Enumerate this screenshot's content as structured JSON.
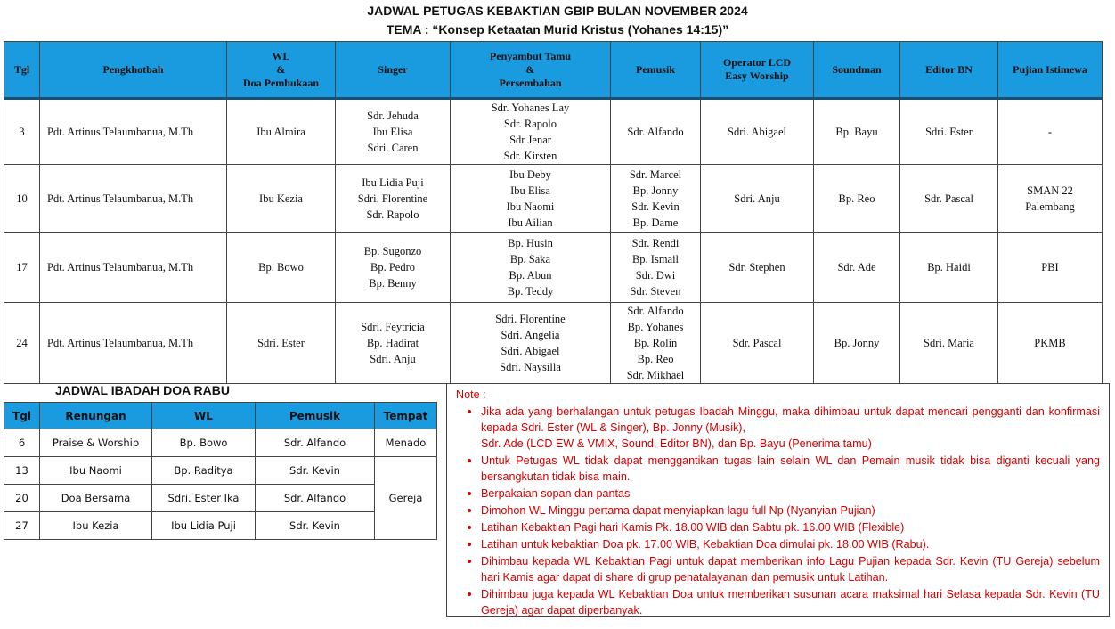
{
  "header": {
    "title": "JADWAL PETUGAS KEBAKTIAN GBIP BULAN NOVEMBER 2024",
    "theme": "TEMA : “Konsep Ketaatan Murid Kristus (Yohanes 14:15)”"
  },
  "colors": {
    "header_bg": "#1a9be0",
    "note_text": "#d40000"
  },
  "main_table": {
    "columns": [
      "Tgl",
      "Pengkhotbah",
      "WL\n&\nDoa Pembukaan",
      "Singer",
      "Penyambut Tamu\n&\nPersembahan",
      "Pemusik",
      "Operator LCD\nEasy Worship",
      "Soundman",
      "Editor BN",
      "Pujian Istimewa"
    ],
    "rows": [
      [
        "3",
        "Pdt. Artinus Telaumbanua, M.Th",
        "Ibu Almira",
        "Sdr. Jehuda\nIbu Elisa\nSdri. Caren",
        "Sdr. Yohanes Lay\nSdr. Rapolo\nSdr Jenar\nSdr. Kirsten",
        "Sdr. Alfando",
        "Sdri. Abigael",
        "Bp. Bayu",
        "Sdri. Ester",
        "-"
      ],
      [
        "10",
        "Pdt. Artinus Telaumbanua, M.Th",
        "Ibu Kezia",
        "Ibu Lidia Puji\nSdri. Florentine\nSdr. Rapolo",
        "Ibu Deby\nIbu Elisa\nIbu Naomi\nIbu Ailian",
        "Sdr. Marcel\nBp. Jonny\nSdr. Kevin\nBp. Dame",
        "Sdri. Anju",
        "Bp. Reo",
        "Sdr. Pascal",
        "SMAN 22\nPalembang"
      ],
      [
        "17",
        "Pdt. Artinus Telaumbanua, M.Th",
        "Bp. Bowo",
        "Bp. Sugonzo\nBp. Pedro\nBp. Benny",
        "Bp. Husin\nBp. Saka\nBp. Abun\nBp. Teddy",
        "Sdr. Rendi\nBp. Ismail\nSdr. Dwi\nSdr. Steven",
        "Sdr. Stephen",
        "Sdr. Ade",
        "Bp. Haidi",
        "PBI"
      ],
      [
        "24",
        "Pdt. Artinus Telaumbanua, M.Th",
        "Sdri. Ester",
        "Sdri. Feytricia\nBp. Hadirat\nSdri. Anju",
        "Sdri. Florentine\nSdri. Angelia\nSdri. Abigael\nSdri. Naysilla",
        "Sdr. Alfando\nBp. Yohanes\nBp. Rolin\nBp. Reo\nSdr. Mikhael",
        "Sdr. Pascal",
        "Bp. Jonny",
        "Sdri. Maria",
        "PKMB"
      ]
    ]
  },
  "doa_table": {
    "title": "JADWAL IBADAH DOA RABU",
    "columns": [
      "Tgl",
      "Renungan",
      "WL",
      "Pemusik",
      "Tempat"
    ],
    "rows": [
      [
        "6",
        "Praise & Worship",
        "Bp. Bowo",
        "Sdr. Alfando",
        "Menado"
      ],
      [
        "13",
        "Ibu Naomi",
        "Bp. Raditya",
        "Sdr. Kevin",
        "Gereja"
      ],
      [
        "20",
        "Doa Bersama",
        "Sdri. Ester Ika",
        "Sdr. Alfando",
        null
      ],
      [
        "27",
        "Ibu Kezia",
        "Ibu Lidia Puji",
        "Sdr. Kevin",
        null
      ]
    ]
  },
  "note": {
    "label": "Note :",
    "items": [
      "Jika ada yang berhalangan untuk petugas Ibadah Minggu, maka dihimbau untuk dapat mencari pengganti dan konfirmasi kepada Sdri. Ester (WL & Singer), Bp. Jonny (Musik),\nSdr. Ade (LCD EW & VMIX, Sound, Editor BN), dan Bp. Bayu (Penerima tamu)",
      "Untuk Petugas WL tidak dapat menggantikan tugas lain selain WL dan Pemain musik tidak bisa diganti kecuali yang bersangkutan tidak bisa main.",
      "Berpakaian sopan dan pantas",
      "Dimohon WL Minggu pertama dapat menyiapkan lagu full Np (Nyanyian Pujian)",
      "Latihan Kebaktian Pagi hari Kamis Pk. 18.00 WIB dan Sabtu pk. 16.00 WIB (Flexible)",
      "Latihan untuk kebaktian Doa pk. 17.00 WIB, Kebaktian Doa dimulai pk. 18.00 WIB (Rabu).",
      "Dihimbau kepada WL Kebaktian Pagi untuk dapat memberikan info Lagu Pujian kepada Sdr. Kevin (TU Gereja) sebelum hari Kamis agar dapat di share di grup penatalayanan dan pemusik untuk Latihan.",
      "Dihimbau juga kepada WL Kebaktian Doa untuk memberikan susunan acara maksimal hari Selasa kepada Sdr. Kevin (TU Gereja) agar dapat diperbanyak."
    ]
  }
}
